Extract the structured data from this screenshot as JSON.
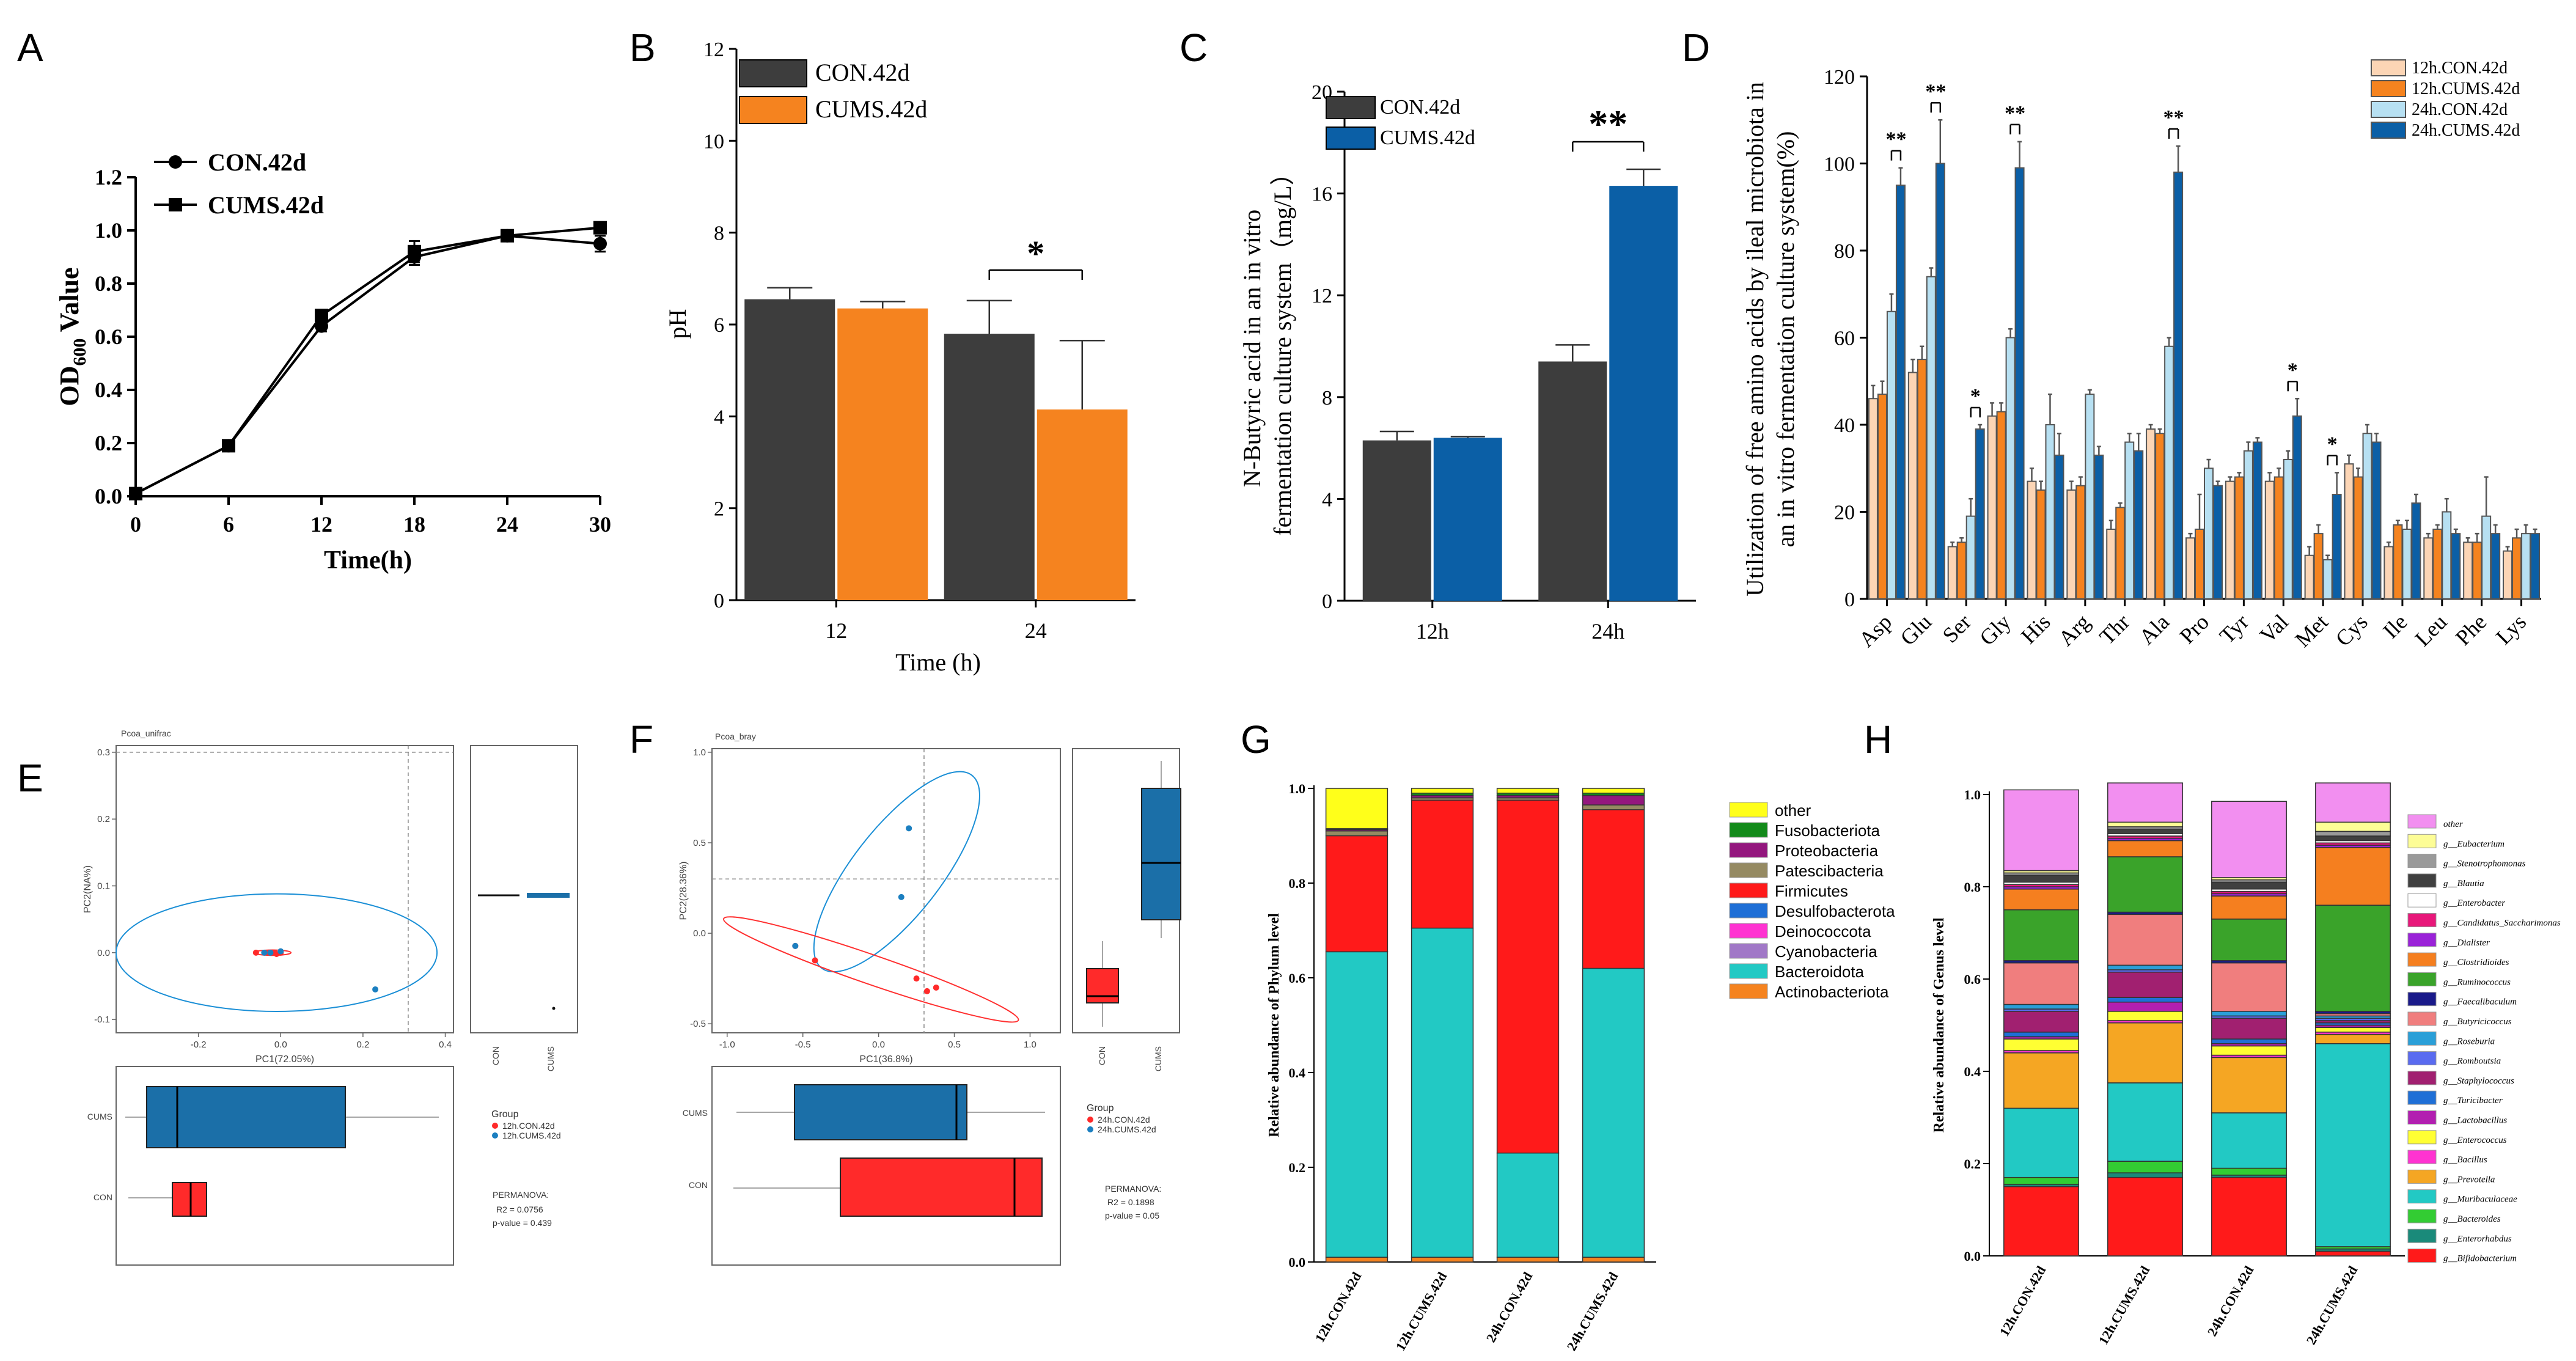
{
  "chart_data": [
    {
      "id": "A",
      "type": "line",
      "panel_label": "A",
      "xlabel": "Time(h)",
      "ylabel_main": "OD",
      "ylabel_sub": "600",
      "ylabel_rest": " Value",
      "x": [
        0,
        6,
        12,
        18,
        24,
        30
      ],
      "xticks": [
        "0",
        "6",
        "12",
        "18",
        "24",
        "30"
      ],
      "yticks": [
        "0.0",
        "0.2",
        "0.4",
        "0.6",
        "0.8",
        "1.0",
        "1.2"
      ],
      "xlim": [
        0,
        30
      ],
      "ylim": [
        0,
        1.2
      ],
      "series": [
        {
          "name": "CON.42d",
          "marker": "circle",
          "values": [
            0.01,
            0.19,
            0.64,
            0.9,
            0.98,
            0.95
          ],
          "errors": [
            0,
            0,
            0.02,
            0.03,
            0.01,
            0.03
          ]
        },
        {
          "name": "CUMS.42d",
          "marker": "square",
          "values": [
            0.01,
            0.19,
            0.68,
            0.92,
            0.98,
            1.01
          ],
          "errors": [
            0,
            0,
            0.02,
            0.04,
            0.01,
            0.02
          ]
        }
      ]
    },
    {
      "id": "B",
      "type": "bar",
      "panel_label": "B",
      "xlabel": "Time (h)",
      "ylabel": "pH",
      "categories": [
        "12",
        "24"
      ],
      "yticks": [
        "0",
        "2",
        "4",
        "6",
        "8",
        "10",
        "12"
      ],
      "ylim": [
        0,
        12
      ],
      "colors": [
        "#3d3d3d",
        "#f5831f"
      ],
      "series": [
        {
          "name": "CON.42d",
          "values": [
            6.55,
            5.8
          ],
          "errors": [
            0.25,
            0.72
          ]
        },
        {
          "name": "CUMS.42d",
          "values": [
            6.35,
            4.15
          ],
          "errors": [
            0.15,
            1.5
          ]
        }
      ],
      "significance": [
        {
          "category": 1,
          "label": "*"
        }
      ]
    },
    {
      "id": "C",
      "type": "bar",
      "panel_label": "C",
      "ylabel_line1": "N-Butyric acid in an in vitro",
      "ylabel_line2": "fermentation culture system（mg/L）",
      "categories": [
        "12h",
        "24h"
      ],
      "yticks": [
        "0",
        "4",
        "8",
        "12",
        "16",
        "20"
      ],
      "ylim": [
        0,
        20
      ],
      "colors": [
        "#3d3d3d",
        "#0b5fa6"
      ],
      "series": [
        {
          "name": "CON.42d",
          "values": [
            6.3,
            9.4
          ],
          "errors": [
            0.35,
            0.65
          ]
        },
        {
          "name": "CUMS.42d",
          "values": [
            6.4,
            16.3
          ],
          "errors": [
            0.05,
            0.65
          ]
        }
      ],
      "significance": [
        {
          "category": 1,
          "label": "**"
        }
      ]
    },
    {
      "id": "D",
      "type": "bar",
      "panel_label": "D",
      "ylabel_line1": "Utilization of free amino acids by ileal microbiota in",
      "ylabel_line2": "an in vitro fermentation culture system(%)",
      "categories": [
        "Asp",
        "Glu",
        "Ser",
        "Gly",
        "His",
        "Arg",
        "Thr",
        "Ala",
        "Pro",
        "Tyr",
        "Val",
        "Met",
        "Cys",
        "Ile",
        "Leu",
        "Phe",
        "Lys"
      ],
      "yticks": [
        "0",
        "20",
        "40",
        "60",
        "80",
        "100",
        "120"
      ],
      "ylim": [
        0,
        120
      ],
      "colors": [
        "#fcd5b5",
        "#f5831f",
        "#b7e0f2",
        "#0b5fa6"
      ],
      "series": [
        {
          "name": "12h.CON.42d",
          "values": [
            46,
            52,
            12,
            42,
            27,
            25,
            16,
            39,
            14,
            27,
            27,
            10,
            31,
            12,
            14,
            13,
            11
          ],
          "errors": [
            3,
            3,
            1,
            3,
            3,
            2,
            2,
            1,
            1,
            1,
            2,
            2,
            2,
            1,
            1,
            1,
            1
          ]
        },
        {
          "name": "12h.CUMS.42d",
          "values": [
            47,
            55,
            13,
            43,
            25,
            26,
            21,
            38,
            16,
            28,
            28,
            15,
            28,
            17,
            16,
            13,
            14
          ],
          "errors": [
            3,
            3,
            1,
            2,
            2,
            2,
            1,
            1,
            8,
            1,
            2,
            2,
            2,
            1,
            1,
            2,
            2
          ]
        },
        {
          "name": "24h.CON.42d",
          "values": [
            66,
            74,
            19,
            60,
            40,
            47,
            36,
            58,
            30,
            34,
            32,
            9,
            38,
            16,
            20,
            19,
            15
          ],
          "errors": [
            4,
            2,
            4,
            2,
            7,
            1,
            2,
            2,
            2,
            2,
            2,
            1,
            2,
            2,
            3,
            9,
            2
          ]
        },
        {
          "name": "24h.CUMS.42d",
          "values": [
            95,
            100,
            39,
            99,
            33,
            33,
            34,
            98,
            26,
            36,
            42,
            24,
            36,
            22,
            15,
            15,
            15
          ],
          "errors": [
            4,
            10,
            1,
            6,
            5,
            2,
            4,
            6,
            1,
            1,
            4,
            5,
            2,
            2,
            1,
            2,
            1
          ]
        }
      ],
      "significance": [
        {
          "category": 0,
          "label": "**"
        },
        {
          "category": 1,
          "label": "**"
        },
        {
          "category": 2,
          "label": "*"
        },
        {
          "category": 3,
          "label": "**"
        },
        {
          "category": 7,
          "label": "**"
        },
        {
          "category": 10,
          "label": "*"
        },
        {
          "category": 11,
          "label": "*"
        }
      ]
    },
    {
      "id": "E",
      "type": "scatter",
      "panel_label": "E",
      "title": "Pcoa_unifrac",
      "xlabel": "PC1(72.05%)",
      "ylabel": "PC2(NA%)",
      "xticks": [
        "-0.2",
        "0.0",
        "0.2",
        "0.4"
      ],
      "yticks": [
        "-0.1",
        "0.0",
        "0.1",
        "0.2",
        "0.3"
      ],
      "xlim": [
        -0.4,
        0.42
      ],
      "ylim": [
        -0.12,
        0.31
      ],
      "points": [
        {
          "group": "12h.CON.42d",
          "x": [
            -0.06,
            -0.03,
            -0.015,
            0.0,
            -0.01
          ],
          "y": [
            0.0,
            0.0,
            0.0,
            0.0,
            -0.002
          ]
        },
        {
          "group": "12h.CUMS.42d",
          "x": [
            -0.04,
            -0.025,
            0.0,
            0.23
          ],
          "y": [
            0.0,
            0.0,
            0.002,
            -0.055
          ]
        }
      ],
      "ellipses": [
        {
          "group": "12h.CUMS.42d",
          "cx": -0.01,
          "cy": 0.0,
          "rx": 0.39,
          "ry": 0.088
        },
        {
          "group": "12h.CON.42d",
          "cx": -0.02,
          "cy": 0.0,
          "rx": 0.045,
          "ry": 0.004
        }
      ],
      "box_y_group_labels": [
        "CON",
        "CUMS"
      ],
      "box_x_group_labels": [
        "CUMS",
        "CON"
      ],
      "legend_title": "Group",
      "legend": [
        "12h.CON.42d",
        "12h.CUMS.42d"
      ],
      "stats_title": "PERMANOVA:",
      "r2": "R2 = 0.0756",
      "pvalue": "p-value = 0.439"
    },
    {
      "id": "F",
      "type": "scatter",
      "panel_label": "F",
      "title": "Pcoa_bray",
      "xlabel": "PC1(36.8%)",
      "ylabel": "PC2(28.36%)",
      "xticks": [
        "-1.0",
        "-0.5",
        "0.0",
        "0.5",
        "1.0"
      ],
      "yticks": [
        "-0.5",
        "0.0",
        "0.5",
        "1.0"
      ],
      "xlim": [
        -1.1,
        1.2
      ],
      "ylim": [
        -0.55,
        1.02
      ],
      "points": [
        {
          "group": "24h.CON.42d",
          "x": [
            -0.55,
            -0.42,
            0.25,
            0.32,
            0.38
          ],
          "y": [
            -0.07,
            -0.15,
            -0.25,
            -0.32,
            -0.3
          ]
        },
        {
          "group": "24h.CUMS.42d",
          "x": [
            -0.55,
            0.15,
            0.2
          ],
          "y": [
            -0.07,
            0.2,
            0.58
          ]
        }
      ],
      "box_y_group_labels": [
        "CUMS",
        "CON"
      ],
      "box_x_group_labels": [
        "CON",
        "CUMS"
      ],
      "legend_title": "Group",
      "legend": [
        "24h.CON.42d",
        "24h.CUMS.42d"
      ],
      "stats_title": "PERMANOVA:",
      "r2": "R2 = 0.1898",
      "pvalue": "p-value = 0.05"
    },
    {
      "id": "G",
      "type": "bar",
      "stacked": true,
      "panel_label": "G",
      "ylabel": "Relative abundance of Phylum level",
      "categories": [
        "12h.CON.42d",
        "12h.CUMS.42d",
        "24h.CON.42d",
        "24h.CUMS.42d"
      ],
      "yticks": [
        "0.0",
        "0.2",
        "0.4",
        "0.6",
        "0.8",
        "1.0"
      ],
      "ylim": [
        0,
        1
      ],
      "series": [
        {
          "name": "Actinobacteriota",
          "color": "#f5831f",
          "values": [
            0.01,
            0.01,
            0.01,
            0.01
          ]
        },
        {
          "name": "Bacteroidota",
          "color": "#22c9c4",
          "values": [
            0.645,
            0.695,
            0.22,
            0.61
          ]
        },
        {
          "name": "Cyanobacteria",
          "color": "#a178c7",
          "values": [
            0,
            0,
            0,
            0
          ]
        },
        {
          "name": "Deinococcota",
          "color": "#ff33d1",
          "values": [
            0,
            0,
            0,
            0
          ]
        },
        {
          "name": "Desulfobacterota",
          "color": "#1f6fd6",
          "values": [
            0,
            0,
            0,
            0
          ]
        },
        {
          "name": "Firmicutes",
          "color": "#ff1a1a",
          "values": [
            0.245,
            0.27,
            0.745,
            0.335
          ]
        },
        {
          "name": "Patescibacteria",
          "color": "#958a62",
          "values": [
            0.01,
            0.005,
            0.005,
            0.01
          ]
        },
        {
          "name": "Proteobacteria",
          "color": "#94177e",
          "values": [
            0.003,
            0.005,
            0.005,
            0.02
          ]
        },
        {
          "name": "Fusobacteriota",
          "color": "#138a1a",
          "values": [
            0.002,
            0.005,
            0.005,
            0.005
          ]
        },
        {
          "name": "other",
          "color": "#ffff1a",
          "values": [
            0.085,
            0.01,
            0.01,
            0.01
          ]
        }
      ]
    },
    {
      "id": "H",
      "type": "bar",
      "stacked": true,
      "panel_label": "H",
      "ylabel": "Relative abundance of Genus level",
      "categories": [
        "12h.CON.42d",
        "12h.CUMS.42d",
        "24h.CON.42d",
        "24h.CUMS.42d"
      ],
      "yticks": [
        "0.0",
        "0.2",
        "0.4",
        "0.6",
        "0.8",
        "1.0"
      ],
      "ylim": [
        0,
        1
      ],
      "series": [
        {
          "name": "g__Bifidobacterium",
          "color": "#ff1a1a",
          "values": [
            0.15,
            0.17,
            0.17,
            0.01
          ]
        },
        {
          "name": "g__Enterorhabdus",
          "color": "#1a8a7a",
          "values": [
            0.005,
            0.01,
            0.005,
            0.005
          ]
        },
        {
          "name": "g__Bacteroides",
          "color": "#33cc33",
          "values": [
            0.015,
            0.025,
            0.015,
            0.005
          ]
        },
        {
          "name": "g__Muribaculaceae",
          "color": "#22c9c4",
          "values": [
            0.15,
            0.17,
            0.12,
            0.44
          ]
        },
        {
          "name": "g__Prevotella",
          "color": "#f5a623",
          "values": [
            0.12,
            0.13,
            0.12,
            0.02
          ]
        },
        {
          "name": "g__Bacillus",
          "color": "#ff33d1",
          "values": [
            0.005,
            0.005,
            0.005,
            0.005
          ]
        },
        {
          "name": "g__Enterococcus",
          "color": "#ffff33",
          "values": [
            0.025,
            0.02,
            0.02,
            0.01
          ]
        },
        {
          "name": "g__Lactobacillus",
          "color": "#b21fb0",
          "values": [
            0.005,
            0.02,
            0.005,
            0.005
          ]
        },
        {
          "name": "g__Turicibacter",
          "color": "#1f6fd6",
          "values": [
            0.01,
            0.01,
            0.01,
            0.005
          ]
        },
        {
          "name": "g__Staphylococcus",
          "color": "#a12070",
          "values": [
            0.045,
            0.055,
            0.045,
            0.005
          ]
        },
        {
          "name": "g__Romboutsia",
          "color": "#5a6bf0",
          "values": [
            0.005,
            0.005,
            0.005,
            0.005
          ]
        },
        {
          "name": "g__Roseburia",
          "color": "#2a9fd8",
          "values": [
            0.01,
            0.01,
            0.01,
            0.005
          ]
        },
        {
          "name": "g__Butyricicoccus",
          "color": "#f07e7e",
          "values": [
            0.09,
            0.11,
            0.105,
            0.005
          ]
        },
        {
          "name": "g__Faecalibaculum",
          "color": "#1a1a8a",
          "values": [
            0.005,
            0.005,
            0.005,
            0.005
          ]
        },
        {
          "name": "g__Ruminococcus",
          "color": "#3aa32a",
          "values": [
            0.11,
            0.12,
            0.09,
            0.23
          ]
        },
        {
          "name": "g__Clostridioides",
          "color": "#f57f1f",
          "values": [
            0.045,
            0.035,
            0.05,
            0.125
          ]
        },
        {
          "name": "g__Dialister",
          "color": "#9a22d8",
          "values": [
            0.005,
            0.005,
            0.005,
            0.005
          ]
        },
        {
          "name": "g__Candidatus_Saccharimonas",
          "color": "#e8177a",
          "values": [
            0.005,
            0.005,
            0.005,
            0.005
          ]
        },
        {
          "name": "g__Enterobacter",
          "color": "#ffffff",
          "values": [
            0.005,
            0.005,
            0.005,
            0.005
          ]
        },
        {
          "name": "g__Blautia",
          "color": "#404040",
          "values": [
            0.015,
            0.01,
            0.015,
            0.01
          ]
        },
        {
          "name": "g__Stenotrophomonas",
          "color": "#9a9a9a",
          "values": [
            0.005,
            0.005,
            0.005,
            0.01
          ]
        },
        {
          "name": "g__Eubacterium",
          "color": "#fdfd96",
          "values": [
            0.005,
            0.01,
            0.005,
            0.02
          ]
        },
        {
          "name": "other",
          "color": "#f28ff0",
          "values": [
            0.175,
            0.085,
            0.165,
            0.085
          ]
        }
      ]
    }
  ]
}
